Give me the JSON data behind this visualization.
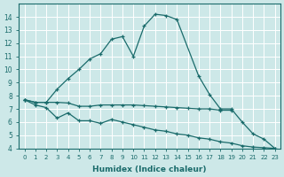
{
  "xlabel": "Humidex (Indice chaleur)",
  "bg_color": "#cde8e8",
  "grid_color": "#ffffff",
  "line_color": "#1a6b6b",
  "xa": [
    0,
    1,
    2,
    3,
    4,
    5,
    6,
    7,
    8,
    9,
    10,
    11,
    12,
    13,
    14,
    16,
    17,
    18,
    19,
    20,
    21,
    22,
    23
  ],
  "ya": [
    7.7,
    7.5,
    7.5,
    8.5,
    9.3,
    10.0,
    10.8,
    11.2,
    12.3,
    12.5,
    11.0,
    13.3,
    14.2,
    14.1,
    13.8,
    9.5,
    8.1,
    7.0,
    7.0,
    6.0,
    5.1,
    4.7,
    4.0
  ],
  "xb": [
    0,
    1,
    2,
    3,
    4,
    5,
    6,
    7,
    8,
    9,
    10,
    11,
    12,
    13,
    14,
    15,
    16,
    17,
    18,
    19
  ],
  "yb": [
    7.7,
    7.5,
    7.5,
    7.5,
    7.45,
    7.2,
    7.2,
    7.3,
    7.3,
    7.3,
    7.3,
    7.25,
    7.2,
    7.15,
    7.1,
    7.05,
    7.0,
    7.0,
    6.9,
    6.9
  ],
  "xc": [
    0,
    1,
    2,
    3,
    4,
    5,
    6,
    7,
    8,
    9,
    10,
    11,
    12,
    13,
    14,
    15,
    16,
    17,
    18,
    19,
    20,
    21,
    22,
    23
  ],
  "yc": [
    7.7,
    7.3,
    7.1,
    6.3,
    6.7,
    6.1,
    6.1,
    5.9,
    6.2,
    6.0,
    5.8,
    5.6,
    5.4,
    5.3,
    5.1,
    5.0,
    4.8,
    4.7,
    4.5,
    4.4,
    4.2,
    4.1,
    4.05,
    4.0
  ],
  "ylim": [
    4,
    15
  ],
  "yticks": [
    4,
    5,
    6,
    7,
    8,
    9,
    10,
    11,
    12,
    13,
    14
  ],
  "xlim": [
    -0.5,
    23.5
  ]
}
